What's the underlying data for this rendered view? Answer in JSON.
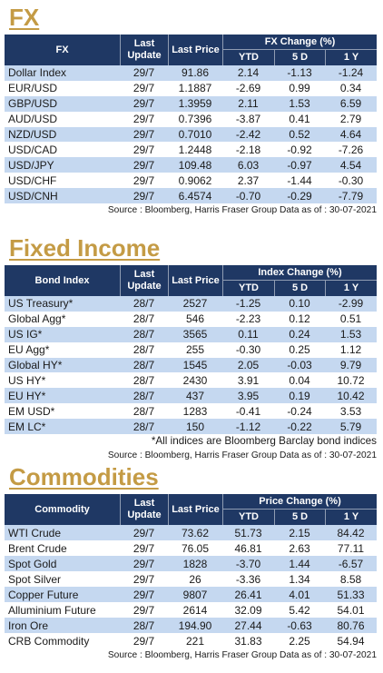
{
  "colors": {
    "heading": "#c49b45",
    "header_background": "#1f3864",
    "header_text": "#ffffff",
    "row_stripe": "#c5d8f0",
    "body_text": "#1a1a1a"
  },
  "fx": {
    "title": "FX",
    "columns": {
      "name": "FX",
      "last_update": "Last Update",
      "last_price": "Last Price",
      "change_group": "FX Change (%)",
      "ytd": "YTD",
      "five_day": "5 D",
      "one_year": "1 Y"
    },
    "rows": [
      [
        "Dollar Index",
        "29/7",
        "91.86",
        "2.14",
        "-1.13",
        "-1.24"
      ],
      [
        "EUR/USD",
        "29/7",
        "1.1887",
        "-2.69",
        "0.99",
        "0.34"
      ],
      [
        "GBP/USD",
        "29/7",
        "1.3959",
        "2.11",
        "1.53",
        "6.59"
      ],
      [
        "AUD/USD",
        "29/7",
        "0.7396",
        "-3.87",
        "0.41",
        "2.79"
      ],
      [
        "NZD/USD",
        "29/7",
        "0.7010",
        "-2.42",
        "0.52",
        "4.64"
      ],
      [
        "USD/CAD",
        "29/7",
        "1.2448",
        "-2.18",
        "-0.92",
        "-7.26"
      ],
      [
        "USD/JPY",
        "29/7",
        "109.48",
        "6.03",
        "-0.97",
        "4.54"
      ],
      [
        "USD/CHF",
        "29/7",
        "0.9062",
        "2.37",
        "-1.44",
        "-0.30"
      ],
      [
        "USD/CNH",
        "29/7",
        "6.4574",
        "-0.70",
        "-0.29",
        "-7.79"
      ]
    ],
    "source": "Source : Bloomberg, Harris Fraser Group Data as of : 30-07-2021"
  },
  "fixed_income": {
    "title": "Fixed Income",
    "columns": {
      "name": "Bond Index",
      "last_update": "Last Update",
      "last_price": "Last Price",
      "change_group": "Index Change (%)",
      "ytd": "YTD",
      "five_day": "5 D",
      "one_year": "1 Y"
    },
    "rows": [
      [
        "US Treasury*",
        "28/7",
        "2527",
        "-1.25",
        "0.10",
        "-2.99"
      ],
      [
        "Global Agg*",
        "28/7",
        "546",
        "-2.23",
        "0.12",
        "0.51"
      ],
      [
        "US IG*",
        "28/7",
        "3565",
        "0.11",
        "0.24",
        "1.53"
      ],
      [
        "EU Agg*",
        "28/7",
        "255",
        "-0.30",
        "0.25",
        "1.12"
      ],
      [
        "Global HY*",
        "28/7",
        "1545",
        "2.05",
        "-0.03",
        "9.79"
      ],
      [
        "US HY*",
        "28/7",
        "2430",
        "3.91",
        "0.04",
        "10.72"
      ],
      [
        "EU HY*",
        "28/7",
        "437",
        "3.95",
        "0.19",
        "10.42"
      ],
      [
        "EM USD*",
        "28/7",
        "1283",
        "-0.41",
        "-0.24",
        "3.53"
      ],
      [
        "EM LC*",
        "28/7",
        "150",
        "-1.12",
        "-0.22",
        "5.79"
      ]
    ],
    "footnote": "*All indices are Bloomberg Barclay bond indices",
    "source": "Source : Bloomberg, Harris Fraser Group Data as of : 30-07-2021"
  },
  "commodities": {
    "title": "Commodities",
    "columns": {
      "name": "Commodity",
      "last_update": "Last Update",
      "last_price": "Last Price",
      "change_group": "Price Change (%)",
      "ytd": "YTD",
      "five_day": "5 D",
      "one_year": "1 Y"
    },
    "rows": [
      [
        "WTI Crude",
        "29/7",
        "73.62",
        "51.73",
        "2.15",
        "84.42"
      ],
      [
        "Brent Crude",
        "29/7",
        "76.05",
        "46.81",
        "2.63",
        "77.11"
      ],
      [
        "Spot Gold",
        "29/7",
        "1828",
        "-3.70",
        "1.44",
        "-6.57"
      ],
      [
        "Spot Silver",
        "29/7",
        "26",
        "-3.36",
        "1.34",
        "8.58"
      ],
      [
        "Copper Future",
        "29/7",
        "9807",
        "26.41",
        "4.01",
        "51.33"
      ],
      [
        "Alluminium Future",
        "29/7",
        "2614",
        "32.09",
        "5.42",
        "54.01"
      ],
      [
        "Iron Ore",
        "28/7",
        "194.90",
        "27.44",
        "-0.63",
        "80.76"
      ],
      [
        "CRB Commodity",
        "29/7",
        "221",
        "31.83",
        "2.25",
        "54.94"
      ]
    ],
    "source": "Source : Bloomberg, Harris Fraser Group Data as of : 30-07-2021"
  }
}
